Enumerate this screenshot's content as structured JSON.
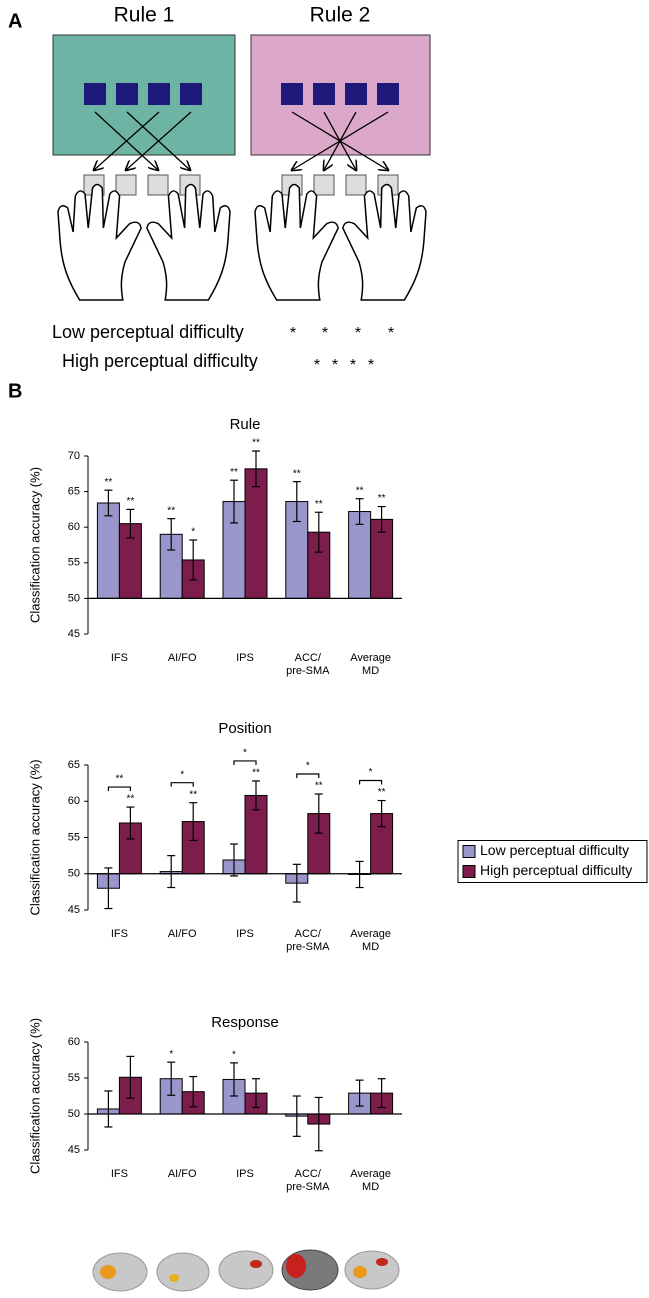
{
  "panel_a": {
    "label": "A",
    "rules": [
      "Rule 1",
      "Rule 2"
    ],
    "conditions": [
      {
        "name": "Low perceptual difficulty",
        "markers": [
          "*",
          "*",
          "*",
          "*"
        ]
      },
      {
        "name": "High perceptual difficulty",
        "markers": [
          "*",
          "*",
          "*",
          "*"
        ]
      }
    ]
  },
  "panel_b": {
    "label": "B"
  },
  "chart_data": [
    {
      "type": "bar",
      "title": "Rule",
      "y_label": "Classification accuracy (%)",
      "categories": [
        [
          "IFS"
        ],
        [
          "AI/FO"
        ],
        [
          "IPS"
        ],
        [
          "ACC/",
          "pre-SMA"
        ],
        [
          "Average",
          "MD"
        ]
      ],
      "ylim": [
        45,
        70
      ],
      "yticks": [
        45,
        50,
        55,
        60,
        65,
        70
      ],
      "series": [
        {
          "color": "#9a96cc",
          "values": [
            63.4,
            59,
            63.6,
            63.6,
            62.2
          ],
          "errors": [
            1.8,
            2.2,
            3,
            2.8,
            1.8
          ],
          "significance": [
            "**",
            "**",
            "**",
            "**",
            "**"
          ]
        },
        {
          "color": "#7d1d4c",
          "values": [
            60.5,
            55.4,
            68.2,
            59.3,
            61.1
          ],
          "errors": [
            2,
            2.8,
            2.5,
            2.8,
            1.8
          ],
          "significance": [
            "**",
            "*",
            "**",
            "**",
            "**"
          ]
        }
      ]
    },
    {
      "type": "bar",
      "title": "Position",
      "y_label": "Classification accuracy (%)",
      "categories": [
        [
          "IFS"
        ],
        [
          "AI/FO"
        ],
        [
          "IPS"
        ],
        [
          "ACC/",
          "pre-SMA"
        ],
        [
          "Average",
          "MD"
        ]
      ],
      "ylim": [
        45,
        65
      ],
      "yticks": [
        45,
        50,
        55,
        60,
        65
      ],
      "legend": "right",
      "comparisons": [
        "**",
        "*",
        "*",
        "*",
        "*"
      ],
      "series": [
        {
          "name": "Low perceptual difficulty",
          "color": "#9a96cc",
          "values": [
            48,
            50.3,
            51.9,
            48.7,
            49.9
          ],
          "errors": [
            2.8,
            2.2,
            2.2,
            2.6,
            1.8
          ],
          "significance": [
            null,
            null,
            null,
            null,
            null
          ]
        },
        {
          "name": "High perceptual difficulty",
          "color": "#7d1d4c",
          "values": [
            57,
            57.2,
            60.8,
            58.3,
            58.3
          ],
          "errors": [
            2.2,
            2.6,
            2,
            2.7,
            1.8
          ],
          "significance": [
            "**",
            "**",
            "**",
            "**",
            "**"
          ]
        }
      ]
    },
    {
      "type": "bar",
      "title": "Response",
      "y_label": "Classification accuracy (%)",
      "categories": [
        [
          "IFS"
        ],
        [
          "AI/FO"
        ],
        [
          "IPS"
        ],
        [
          "ACC/",
          "pre-SMA"
        ],
        [
          "Average",
          "MD"
        ]
      ],
      "ylim": [
        45,
        60
      ],
      "yticks": [
        45,
        50,
        55,
        60
      ],
      "series": [
        {
          "color": "#9a96cc",
          "values": [
            50.7,
            54.9,
            54.8,
            49.7,
            52.9
          ],
          "errors": [
            2.5,
            2.3,
            2.3,
            2.8,
            1.8
          ],
          "significance": [
            null,
            "*",
            "*",
            null,
            null
          ]
        },
        {
          "color": "#7d1d4c",
          "values": [
            55.1,
            53.1,
            52.9,
            48.6,
            52.9
          ],
          "errors": [
            2.9,
            2.1,
            2,
            3.7,
            2
          ],
          "significance": [
            null,
            null,
            null,
            null,
            null
          ]
        }
      ]
    }
  ]
}
